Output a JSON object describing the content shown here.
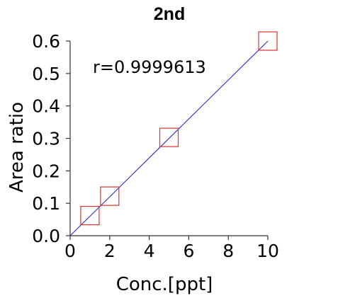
{
  "chart_data": {
    "type": "scatter",
    "title": "2nd",
    "xlabel": "Conc.[ppt]",
    "ylabel": "Area ratio",
    "xlim": [
      0,
      10
    ],
    "ylim": [
      0,
      0.6
    ],
    "x_ticks": [
      "0",
      "2",
      "4",
      "6",
      "8",
      "10"
    ],
    "y_ticks": [
      "0.0",
      "0.1",
      "0.2",
      "0.3",
      "0.4",
      "0.5",
      "0.6"
    ],
    "annotation": "r=0.9999613",
    "grid": false,
    "series": [
      {
        "marker": "open-square",
        "color": "#e03030",
        "points": [
          {
            "x": 1,
            "y": 0.062
          },
          {
            "x": 2,
            "y": 0.122
          },
          {
            "x": 5,
            "y": 0.303
          },
          {
            "x": 10,
            "y": 0.6
          }
        ]
      }
    ],
    "fit_line": {
      "color": "#1a1acc",
      "from": {
        "x": 0,
        "y": 0
      },
      "to": {
        "x": 10,
        "y": 0.6
      }
    }
  }
}
